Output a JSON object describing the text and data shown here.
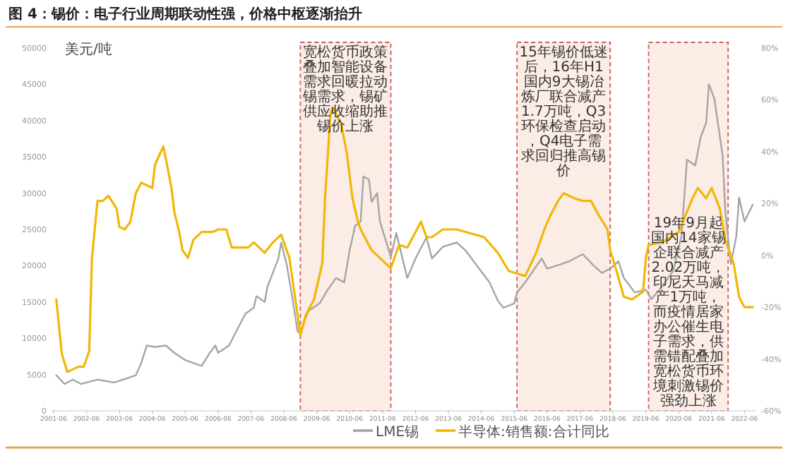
{
  "chart_data": {
    "type": "line",
    "title": "图 4：锡价：电子行业周期联动性强，价格中枢逐渐抬升",
    "ylabel": "美元/吨",
    "legend": "bottom",
    "xlim": [
      "2001-05",
      "2022-10"
    ],
    "xticks": [
      "2001-06",
      "2002-06",
      "2003-06",
      "2004-06",
      "2005-06",
      "2006-06",
      "2007-06",
      "2008-06",
      "2009-06",
      "2010-06",
      "2011-06",
      "2012-06",
      "2013-06",
      "2014-06",
      "2015-06",
      "2016-06",
      "2017-06",
      "2018-06",
      "2019-06",
      "2020-06",
      "2021-06",
      "2022-06"
    ],
    "ylim": [
      0,
      50000
    ],
    "yticks": [
      0,
      5000,
      10000,
      15000,
      20000,
      25000,
      30000,
      35000,
      40000,
      45000,
      50000
    ],
    "y2lim": [
      -60,
      80
    ],
    "y2ticks": [
      {
        "value": -60,
        "label": "-60%"
      },
      {
        "value": -40,
        "label": "-40%"
      },
      {
        "value": -20,
        "label": "-20%"
      },
      {
        "value": 0,
        "label": "0%"
      },
      {
        "value": 20,
        "label": "20%"
      },
      {
        "value": 40,
        "label": "40%"
      },
      {
        "value": 60,
        "label": "60%"
      },
      {
        "value": 80,
        "label": "80%"
      }
    ],
    "bands": [
      {
        "axis": "x",
        "from": "2008-12",
        "to": "2011-09",
        "color": "#fbece6",
        "label": "宽松货币政策叠加智能设备需求回暖拉动锡需求，锡矿供应收缩助推锡价上涨"
      },
      {
        "axis": "x",
        "from": "2015-07",
        "to": "2018-05",
        "color": "#fbece6",
        "label": "15年锡价低迷后，16年H1国内9大锡冶炼厂联合减产1.7万吨，Q3环保检查启动，Q4电子需求回归推高锡价"
      },
      {
        "axis": "x",
        "from": "2019-07",
        "to": "2021-12",
        "color": "#fbece6",
        "label": "19年9月起国内14家锡企联合减产2.02万吨，印尼天马减产1万吨，而疫情居家办公催生电子需求，供需错配叠加宽松货币环境刺激锡价强劲上涨"
      }
    ],
    "series": [
      {
        "name": "LME锡",
        "color": "#a5a5a5",
        "x": [
          "2001-07",
          "2001-10",
          "2002-01",
          "2002-04",
          "2002-10",
          "2003-04",
          "2003-09",
          "2003-12",
          "2004-02",
          "2004-04",
          "2004-07",
          "2004-11",
          "2005-02",
          "2005-06",
          "2005-12",
          "2006-03",
          "2006-05",
          "2006-06",
          "2006-10",
          "2006-12",
          "2007-04",
          "2007-07",
          "2007-08",
          "2007-11",
          "2007-12",
          "2008-04",
          "2008-05",
          "2008-07",
          "2008-09",
          "2008-11",
          "2008-12",
          "2009-03",
          "2009-07",
          "2009-10",
          "2010-01",
          "2010-04",
          "2010-06",
          "2010-08",
          "2010-10",
          "2010-11",
          "2011-01",
          "2011-02",
          "2011-04",
          "2011-05",
          "2011-09",
          "2011-11",
          "2012-03",
          "2012-06",
          "2012-10",
          "2012-12",
          "2013-04",
          "2013-09",
          "2013-12",
          "2014-04",
          "2014-09",
          "2014-12",
          "2015-02",
          "2015-06",
          "2015-07",
          "2015-10",
          "2016-04",
          "2016-06",
          "2016-11",
          "2017-02",
          "2017-07",
          "2017-11",
          "2018-02",
          "2018-05",
          "2018-08",
          "2018-10",
          "2019-02",
          "2019-06",
          "2019-08",
          "2019-11",
          "2020-01",
          "2020-04",
          "2020-07",
          "2020-09",
          "2020-12",
          "2021-02",
          "2021-04",
          "2021-05",
          "2021-07",
          "2021-10",
          "2021-11",
          "2022-01",
          "2022-03",
          "2022-04",
          "2022-06",
          "2022-07",
          "2022-09"
        ],
        "values": [
          4900,
          3700,
          4300,
          3700,
          4300,
          3900,
          4500,
          4900,
          6600,
          9000,
          8800,
          9000,
          8000,
          7000,
          6200,
          8000,
          9000,
          8000,
          9000,
          10500,
          13400,
          14200,
          15800,
          15000,
          17100,
          21000,
          23200,
          20200,
          15800,
          10900,
          10900,
          13800,
          14800,
          16700,
          18300,
          17700,
          22200,
          25500,
          26100,
          32300,
          31900,
          28800,
          30000,
          26100,
          21200,
          24500,
          18300,
          21000,
          23900,
          21000,
          22600,
          23200,
          22200,
          20200,
          17700,
          15200,
          14200,
          14800,
          16300,
          17700,
          21000,
          19600,
          20200,
          20600,
          21600,
          20000,
          19000,
          19600,
          20600,
          18300,
          16300,
          16700,
          15400,
          16700,
          17700,
          19300,
          24100,
          34600,
          33800,
          37700,
          39700,
          45000,
          43000,
          35200,
          27400,
          20200,
          24100,
          29400,
          26100,
          26900,
          28400
        ]
      },
      {
        "name": "半导体:销售额:合计同比",
        "color": "#f2b705",
        "axis": "y2",
        "x": [
          "2001-07",
          "2001-09",
          "2001-11",
          "2002-03",
          "2002-05",
          "2002-07",
          "2002-08",
          "2002-10",
          "2002-12",
          "2003-02",
          "2003-05",
          "2003-06",
          "2003-08",
          "2003-10",
          "2003-12",
          "2004-02",
          "2004-06",
          "2004-07",
          "2004-10",
          "2004-11",
          "2005-01",
          "2005-02",
          "2005-04",
          "2005-05",
          "2005-07",
          "2005-09",
          "2005-12",
          "2006-04",
          "2006-06",
          "2006-09",
          "2006-11",
          "2007-05",
          "2007-07",
          "2007-11",
          "2008-02",
          "2008-05",
          "2008-08",
          "2008-11",
          "2008-12",
          "2009-02",
          "2009-05",
          "2009-08",
          "2009-09",
          "2009-11",
          "2009-12",
          "2010-03",
          "2010-05",
          "2010-07",
          "2010-09",
          "2010-10",
          "2011-02",
          "2011-05",
          "2011-09",
          "2011-12",
          "2012-03",
          "2012-08",
          "2012-10",
          "2012-12",
          "2013-04",
          "2013-09",
          "2014-07",
          "2014-12",
          "2015-04",
          "2015-07",
          "2015-10",
          "2016-02",
          "2016-05",
          "2016-07",
          "2016-10",
          "2016-12",
          "2017-04",
          "2017-07",
          "2017-10",
          "2017-12",
          "2018-04",
          "2018-05",
          "2018-07",
          "2018-10",
          "2019-01",
          "2019-05",
          "2019-06",
          "2019-07",
          "2019-12",
          "2020-06",
          "2020-11",
          "2021-01",
          "2021-04",
          "2021-06",
          "2021-09",
          "2021-11",
          "2022-02",
          "2022-04",
          "2022-06",
          "2022-09"
        ],
        "values": [
          -17,
          -38,
          -45,
          -43,
          -43,
          -37,
          -1,
          21,
          21,
          23,
          18,
          11,
          10,
          13,
          24,
          28,
          26,
          35,
          42,
          37,
          26,
          17,
          8,
          2,
          -1,
          6,
          9,
          9,
          10,
          10,
          3,
          3,
          5,
          1,
          5,
          8,
          -1,
          -23,
          -31,
          -23,
          -17,
          -3,
          22,
          55,
          57,
          50,
          39,
          22,
          13,
          10,
          2,
          -1,
          -5,
          4,
          3,
          13,
          7,
          7,
          10,
          10,
          7,
          1,
          -6,
          -7,
          -8,
          1,
          10,
          15,
          21,
          24,
          22,
          21,
          21,
          17,
          10,
          2,
          -5,
          -16,
          -17,
          -14,
          -1,
          4,
          5,
          9,
          22,
          26,
          22,
          26,
          18,
          6,
          -3,
          -16,
          -20,
          -20
        ]
      }
    ]
  }
}
